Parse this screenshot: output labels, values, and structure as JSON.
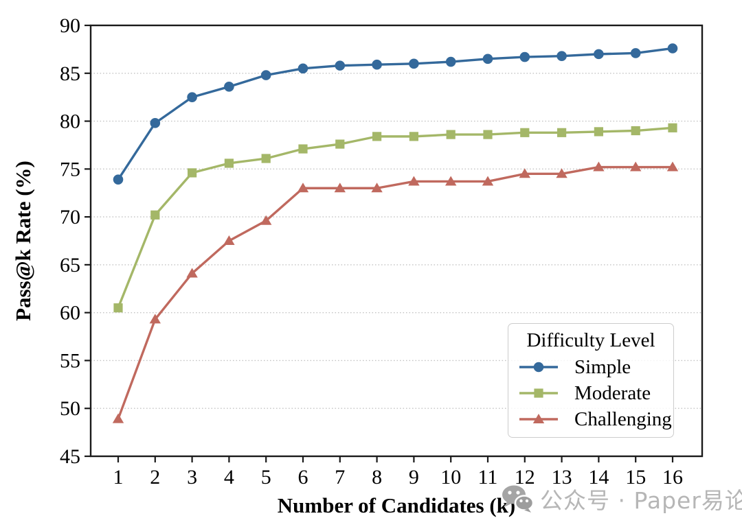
{
  "chart_data": {
    "type": "line",
    "title": "",
    "xlabel": "Number of Candidates (k)",
    "ylabel": "Pass@k Rate (%)",
    "x": [
      1,
      2,
      3,
      4,
      5,
      6,
      7,
      8,
      9,
      10,
      11,
      12,
      13,
      14,
      15,
      16
    ],
    "xlim": [
      0.25,
      16.8
    ],
    "ylim": [
      45,
      90
    ],
    "y_ticks": [
      45,
      50,
      55,
      60,
      65,
      70,
      75,
      80,
      85,
      90
    ],
    "grid": {
      "horizontal": true,
      "vertical": false,
      "style": "dotted",
      "color": "#c4c4c4"
    },
    "legend": {
      "title": "Difficulty Level",
      "position": "lower-right-inside"
    },
    "series": [
      {
        "name": "Simple",
        "marker": "circle",
        "color": "#34699b",
        "values": [
          73.9,
          79.8,
          82.5,
          83.6,
          84.8,
          85.5,
          85.8,
          85.9,
          86.0,
          86.2,
          86.5,
          86.7,
          86.8,
          87.0,
          87.1,
          87.6
        ]
      },
      {
        "name": "Moderate",
        "marker": "square",
        "color": "#a4b768",
        "values": [
          60.5,
          70.2,
          74.6,
          75.6,
          76.1,
          77.1,
          77.6,
          78.4,
          78.4,
          78.6,
          78.6,
          78.8,
          78.8,
          78.9,
          79.0,
          79.3
        ]
      },
      {
        "name": "Challenging",
        "marker": "triangle",
        "color": "#c0695e",
        "values": [
          48.9,
          59.3,
          64.1,
          67.5,
          69.6,
          73.0,
          73.0,
          73.0,
          73.7,
          73.7,
          73.7,
          74.5,
          74.5,
          75.2,
          75.2,
          75.2
        ]
      }
    ]
  },
  "watermark": {
    "icon": "wechat-icon",
    "text": "公众号 · Paper易论",
    "text_color": "#b6b6b6",
    "icon_color": "#a5a5a5"
  }
}
